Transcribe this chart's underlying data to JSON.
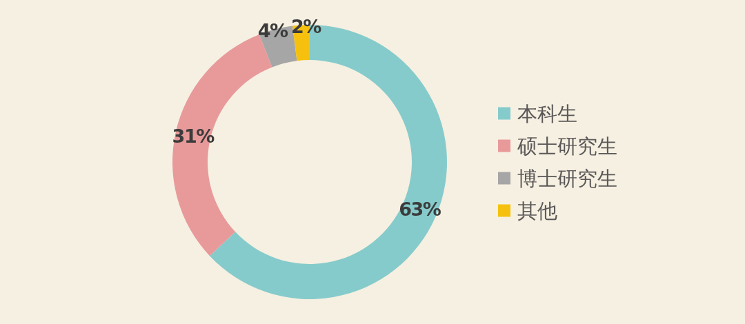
{
  "chart_data": {
    "type": "donut",
    "categories": [
      "本科生",
      "硕士研究生",
      "博士研究生",
      "其他"
    ],
    "values": [
      63,
      31,
      4,
      2
    ],
    "colors": [
      "#86cbcb",
      "#e89a9a",
      "#a6a6a6",
      "#f6c10e"
    ],
    "value_labels": [
      "63%",
      "31%",
      "4%",
      "2%"
    ],
    "legend": "right"
  }
}
